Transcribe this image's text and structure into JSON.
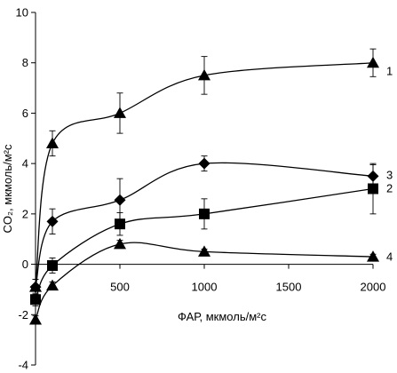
{
  "chart_data": {
    "type": "line",
    "title": "",
    "xlabel": "ФАР, мкмоль/м²с",
    "ylabel": "CO₂, мкмоль/м²с",
    "xlim": [
      0,
      2000
    ],
    "ylim": [
      -4,
      10
    ],
    "x_ticks": [
      500,
      1000,
      1500,
      2000
    ],
    "y_ticks": [
      -4,
      -2,
      0,
      2,
      4,
      6,
      8,
      10
    ],
    "grid": false,
    "series": [
      {
        "name": "1",
        "marker": "triangle",
        "x": [
          0,
          100,
          500,
          1000,
          2000
        ],
        "values": [
          -0.9,
          4.8,
          6.0,
          7.5,
          8.0
        ],
        "errors": [
          0.3,
          0.5,
          0.8,
          0.75,
          0.55
        ]
      },
      {
        "name": "3",
        "marker": "diamond",
        "x": [
          0,
          100,
          500,
          1000,
          2000
        ],
        "values": [
          -0.9,
          1.7,
          2.55,
          4.0,
          3.5
        ],
        "errors": [
          0.3,
          0.5,
          0.85,
          0.3,
          0.45
        ]
      },
      {
        "name": "2",
        "marker": "square",
        "x": [
          0,
          100,
          500,
          1000,
          2000
        ],
        "values": [
          -1.4,
          -0.05,
          1.6,
          2.0,
          3.0
        ],
        "errors": [
          0.25,
          0.3,
          0.45,
          0.6,
          1.0
        ]
      },
      {
        "name": "4",
        "marker": "triangle",
        "x": [
          0,
          100,
          500,
          1000,
          2000
        ],
        "values": [
          -2.2,
          -0.85,
          0.8,
          0.5,
          0.3
        ],
        "errors": [
          0.15,
          0.15,
          0.15,
          0.1,
          0.1
        ]
      }
    ]
  },
  "colors": {
    "line": "#000000",
    "marker": "#000000",
    "background": "#ffffff"
  }
}
